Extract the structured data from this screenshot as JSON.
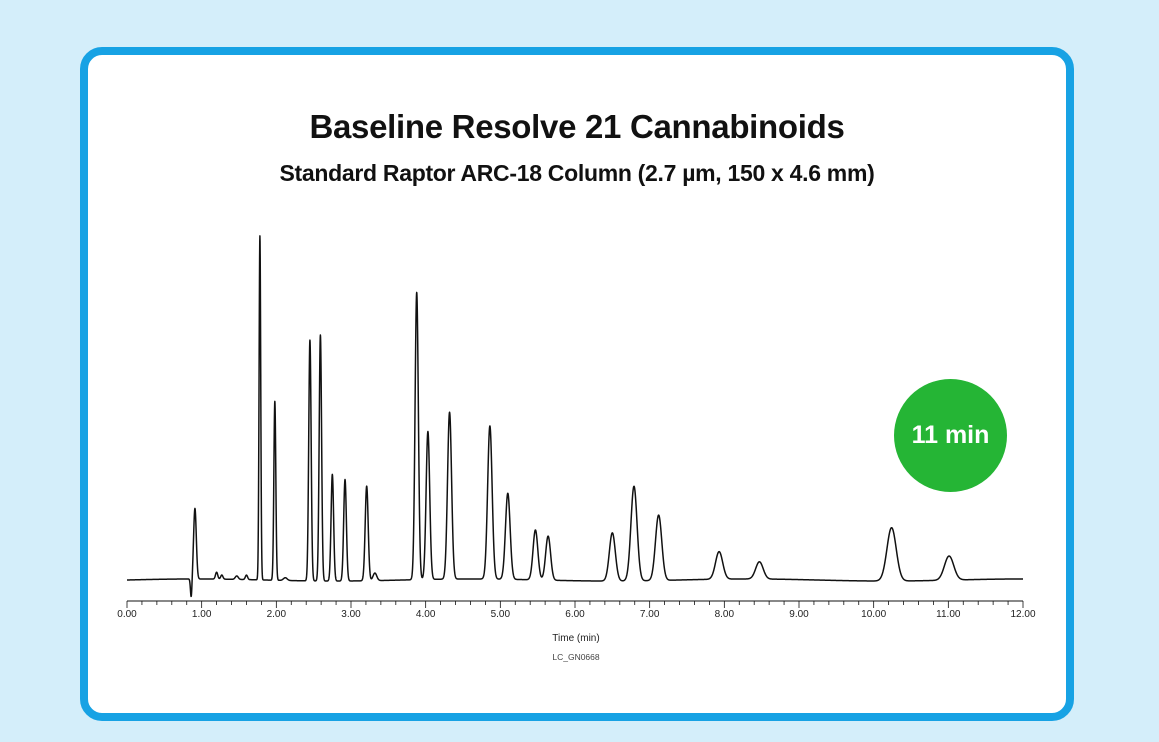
{
  "header": {
    "title": "Baseline Resolve 21 Cannabinoids",
    "subtitle": "Standard Raptor ARC-18 Column (2.7 µm, 150 x 4.6 mm)"
  },
  "badge": {
    "label": "11 min",
    "color": "#25b535"
  },
  "colors": {
    "background": "#d4eefa",
    "border": "#17a2e4",
    "trace": "#111111"
  },
  "chart_data": {
    "type": "line",
    "title": "Baseline Resolve 21 Cannabinoids",
    "subtitle": "Standard Raptor ARC-18 Column (2.7 µm, 150 x 4.6 mm)",
    "xlabel": "Time (min)",
    "ylabel": "",
    "xlim": [
      0,
      12
    ],
    "ylim": [
      0,
      1
    ],
    "x_ticks": [
      "0.00",
      "1.00",
      "2.00",
      "3.00",
      "4.00",
      "5.00",
      "6.00",
      "7.00",
      "8.00",
      "9.00",
      "10.00",
      "11.00",
      "12.00"
    ],
    "grid": false,
    "legend": "none",
    "code": "LC_GN0668",
    "baseline": 0.0,
    "dip": {
      "time": 0.86,
      "depth": -0.055
    },
    "peaks": [
      {
        "rt": 0.91,
        "height": 0.205,
        "width": 0.018
      },
      {
        "rt": 1.78,
        "height": 1.0,
        "width": 0.011
      },
      {
        "rt": 1.98,
        "height": 0.52,
        "width": 0.013
      },
      {
        "rt": 2.45,
        "height": 0.7,
        "width": 0.016
      },
      {
        "rt": 2.59,
        "height": 0.715,
        "width": 0.016
      },
      {
        "rt": 2.75,
        "height": 0.31,
        "width": 0.017
      },
      {
        "rt": 2.92,
        "height": 0.295,
        "width": 0.018
      },
      {
        "rt": 3.21,
        "height": 0.275,
        "width": 0.02
      },
      {
        "rt": 3.88,
        "height": 0.835,
        "width": 0.022
      },
      {
        "rt": 4.03,
        "height": 0.43,
        "width": 0.024
      },
      {
        "rt": 4.32,
        "height": 0.485,
        "width": 0.027
      },
      {
        "rt": 4.86,
        "height": 0.445,
        "width": 0.03
      },
      {
        "rt": 5.1,
        "height": 0.25,
        "width": 0.031
      },
      {
        "rt": 5.47,
        "height": 0.145,
        "width": 0.032
      },
      {
        "rt": 5.64,
        "height": 0.128,
        "width": 0.033
      },
      {
        "rt": 6.5,
        "height": 0.14,
        "width": 0.04
      },
      {
        "rt": 6.79,
        "height": 0.275,
        "width": 0.041
      },
      {
        "rt": 7.12,
        "height": 0.19,
        "width": 0.042
      },
      {
        "rt": 7.93,
        "height": 0.08,
        "width": 0.048
      },
      {
        "rt": 8.47,
        "height": 0.05,
        "width": 0.05
      },
      {
        "rt": 10.24,
        "height": 0.155,
        "width": 0.062
      },
      {
        "rt": 11.01,
        "height": 0.07,
        "width": 0.062
      },
      {
        "rt": 1.2,
        "height": 0.02,
        "width": 0.015
      },
      {
        "rt": 1.27,
        "height": 0.012,
        "width": 0.015
      },
      {
        "rt": 1.47,
        "height": 0.01,
        "width": 0.02
      },
      {
        "rt": 1.6,
        "height": 0.013,
        "width": 0.015
      },
      {
        "rt": 2.12,
        "height": 0.008,
        "width": 0.025
      },
      {
        "rt": 3.32,
        "height": 0.022,
        "width": 0.025
      }
    ]
  }
}
